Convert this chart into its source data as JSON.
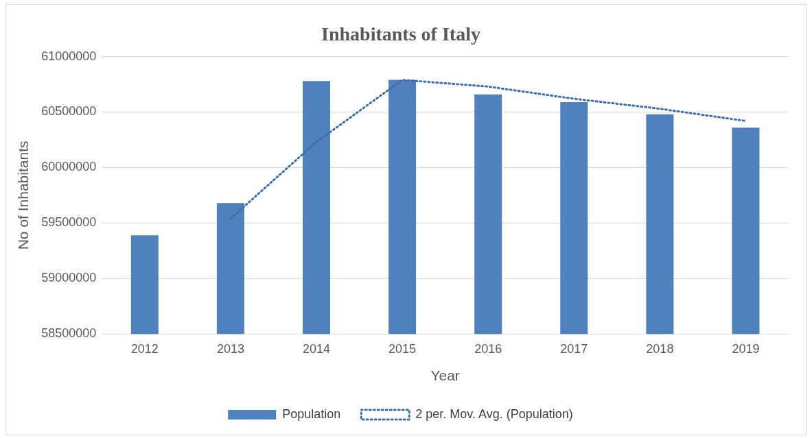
{
  "chart_data": {
    "type": "bar",
    "title": "Inhabitants of Italy",
    "xlabel": "Year",
    "ylabel": "No of Inhabitants",
    "categories": [
      "2012",
      "2013",
      "2014",
      "2015",
      "2016",
      "2017",
      "2018",
      "2019"
    ],
    "series": [
      {
        "name": "Population",
        "color": "#4f81bd",
        "values": [
          59390000,
          59680000,
          60780000,
          60790000,
          60660000,
          60590000,
          60480000,
          60360000
        ]
      },
      {
        "name": "2 per. Mov. Avg. (Population)",
        "type": "line",
        "color": "#3b6cb0",
        "line_style": "dotted",
        "marker": "none",
        "values": [
          null,
          59540000,
          60230000,
          60790000,
          60730000,
          60620000,
          60530000,
          60420000
        ]
      }
    ],
    "ylim": [
      58500000,
      61000000
    ],
    "yticks": [
      58500000,
      59000000,
      59500000,
      60000000,
      60500000,
      61000000
    ],
    "grid": "y",
    "legend": "bottom"
  }
}
